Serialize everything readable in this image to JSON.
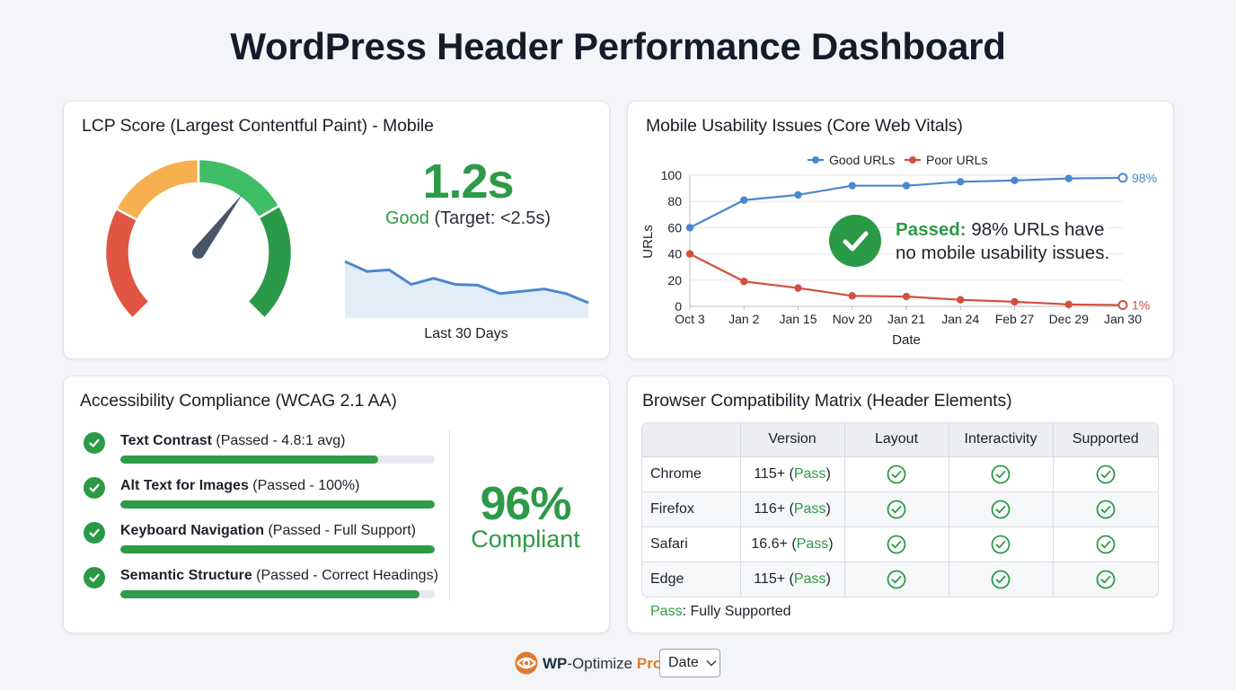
{
  "page": {
    "title": "WordPress Header Performance Dashboard"
  },
  "lcp_card": {
    "title": "LCP Score (Largest Contentful Paint) - Mobile",
    "value": "1.2s",
    "status": "Good",
    "target": "(Target: <2.5s)",
    "sparkline_label": "Last 30 Days",
    "gauge": {
      "segments": [
        {
          "name": "poor",
          "color": "#e05642"
        },
        {
          "name": "needs-improvement",
          "color": "#f6b04f"
        },
        {
          "name": "good-light",
          "color": "#40be65"
        },
        {
          "name": "good-dark",
          "color": "#2b9a48"
        }
      ],
      "needle_color": "#475566"
    },
    "sparkline": {
      "values": [
        74,
        61,
        63,
        44,
        52,
        44,
        43,
        32,
        35,
        38,
        32,
        20
      ],
      "line_color": "#4a88cc",
      "fill_color": "#e3edf8"
    }
  },
  "mobile_card": {
    "title": "Mobile Usability Issues (Core Web Vitals)",
    "legend": [
      {
        "label": "Good URLs",
        "color": "#4a88d0"
      },
      {
        "label": "Poor URLs",
        "color": "#d0503f"
      }
    ],
    "passed_label": "Passed:",
    "passed_text_line1": " 98% URLs have",
    "passed_text_line2": "no mobile usability issues.",
    "end_label_good": "98%",
    "end_label_poor": "1%"
  },
  "chart_data": {
    "type": "line",
    "title": "Mobile Usability Issues (Core Web Vitals)",
    "xlabel": "Date",
    "ylabel": "URLs",
    "ylim": [
      0,
      100
    ],
    "yticks": [
      0,
      20,
      40,
      60,
      80,
      100
    ],
    "grid": true,
    "legend_position": "top",
    "categories": [
      "Oct 3",
      "Jan 2",
      "Jan 15",
      "Nov 20",
      "Jan 21",
      "Jan 24",
      "Feb 27",
      "Dec 29",
      "Jan 30"
    ],
    "series": [
      {
        "name": "Good URLs",
        "values": [
          60,
          81,
          85,
          92,
          92,
          95,
          96,
          97.5,
          98
        ],
        "color": "#4a88d0"
      },
      {
        "name": "Poor URLs",
        "values": [
          40,
          19,
          14,
          8,
          7.5,
          5,
          3.5,
          1.5,
          1
        ],
        "color": "#d0503f"
      }
    ],
    "annotations": [
      "98%",
      "1%",
      "Passed: 98% URLs have no mobile usability issues."
    ]
  },
  "a11y_card": {
    "title": "Accessibility Compliance (WCAG 2.1 AA)",
    "items": [
      {
        "name": "Text Contrast",
        "detail": " (Passed - 4.8:1 avg)",
        "percent": 82
      },
      {
        "name": "Alt Text for Images",
        "detail": " (Passed - 100%)",
        "percent": 100
      },
      {
        "name": "Keyboard Navigation",
        "detail": " (Passed - Full Support)",
        "percent": 100
      },
      {
        "name": "Semantic Structure",
        "detail": " (Passed - Correct Headings)",
        "percent": 95
      }
    ],
    "score": "96%",
    "score_label": "Compliant"
  },
  "browser_card": {
    "title": "Browser Compatibility Matrix (Header Elements)",
    "columns": [
      "",
      "Version",
      "Layout",
      "Interactivity",
      "Supported"
    ],
    "rows": [
      {
        "browser": "Chrome",
        "version": "115+",
        "status": "Pass",
        "layout": "check",
        "interactivity": "check",
        "supported": "check"
      },
      {
        "browser": "Firefox",
        "version": "116+",
        "status": "Pass",
        "layout": "check",
        "interactivity": "check",
        "supported": "check"
      },
      {
        "browser": "Safari",
        "version": "16.6+",
        "status": "Pass",
        "layout": "check",
        "interactivity": "check",
        "supported": "check"
      },
      {
        "browser": "Edge",
        "version": "115+",
        "status": "Pass",
        "layout": "check",
        "interactivity": "check",
        "supported": "check"
      }
    ],
    "legend_key": "Pass",
    "legend_text": ": Fully Supported"
  },
  "footer": {
    "brand_wp": "WP",
    "brand_mid": "-Optimize ",
    "brand_pro": "Pro",
    "date_select": "Date",
    "accent": "#e07a2e"
  }
}
